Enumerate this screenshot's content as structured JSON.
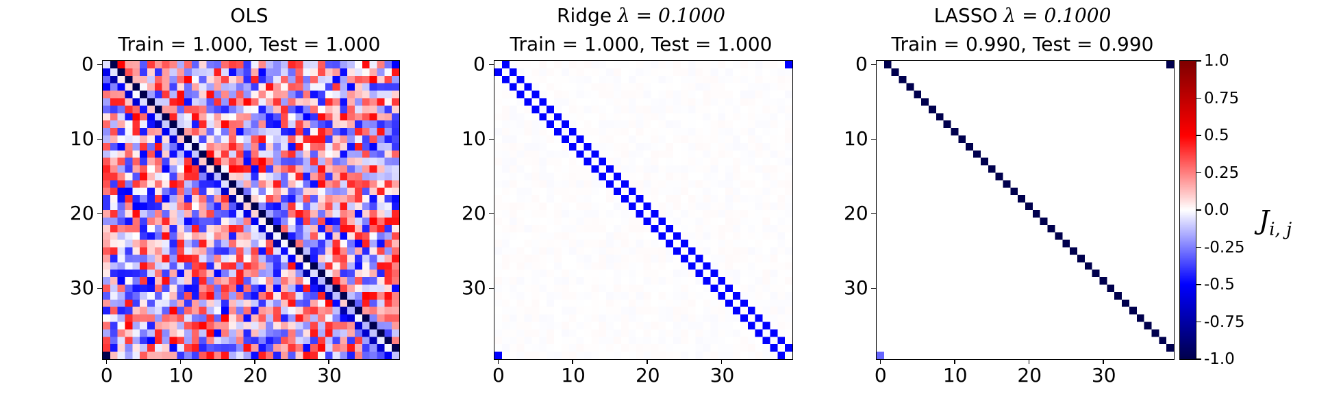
{
  "chart_data": [
    {
      "type": "heatmap",
      "title": "OLS",
      "subtitle": "Train = 1.000, Test = 1.000",
      "method": "OLS",
      "train_score": 1.0,
      "test_score": 1.0,
      "size": 40,
      "x_ticks": [
        "0",
        "10",
        "20",
        "30"
      ],
      "y_ticks": [
        "0",
        "10",
        "20",
        "30"
      ],
      "structure": "noisy coupling matrix: off-diagonal J[i][i+1] = -1.0 (periodic, J[39][0] = -1.0) with random fluctuations in [-0.5, 0.5] elsewhere"
    },
    {
      "type": "heatmap",
      "title_prefix": "Ridge",
      "lambda_label": "λ = 0.1000",
      "subtitle": "Train = 1.000, Test = 1.000",
      "method": "Ridge",
      "lambda": 0.1,
      "train_score": 1.0,
      "test_score": 1.0,
      "size": 40,
      "x_ticks": [
        "0",
        "10",
        "20",
        "30"
      ],
      "y_ticks": [
        "0",
        "10",
        "20",
        "30"
      ],
      "structure": "J[i][i+1] = J[i+1][i] = -0.5 (periodic), near 0 elsewhere"
    },
    {
      "type": "heatmap",
      "title_prefix": "LASSO",
      "lambda_label": "λ = 0.1000",
      "subtitle": "Train = 0.990, Test = 0.990",
      "method": "LASSO",
      "lambda": 0.1,
      "train_score": 0.99,
      "test_score": 0.99,
      "size": 40,
      "x_ticks": [
        "0",
        "10",
        "20",
        "30"
      ],
      "y_ticks": [
        "0",
        "10",
        "20",
        "30"
      ],
      "structure": "J[i][i+1] = -1.0 (periodic, J[39][0] about -0.3), 0 elsewhere"
    }
  ],
  "colorbar": {
    "label_main": "J",
    "label_sub": "i, j",
    "ticks": [
      "1.0",
      "0.75",
      "0.5",
      "0.25",
      "0.0",
      "-0.25",
      "-0.5",
      "-0.75",
      "-1.0"
    ],
    "tick_values": [
      1.0,
      0.75,
      0.5,
      0.25,
      0.0,
      -0.25,
      -0.5,
      -0.75,
      -1.0
    ],
    "range": [
      -1.0,
      1.0
    ],
    "colormap": "seismic",
    "colors": {
      "min": "#00004d",
      "blue": "#0000ff",
      "mid": "#ffffff",
      "red": "#ff0000",
      "max": "#800000"
    }
  }
}
